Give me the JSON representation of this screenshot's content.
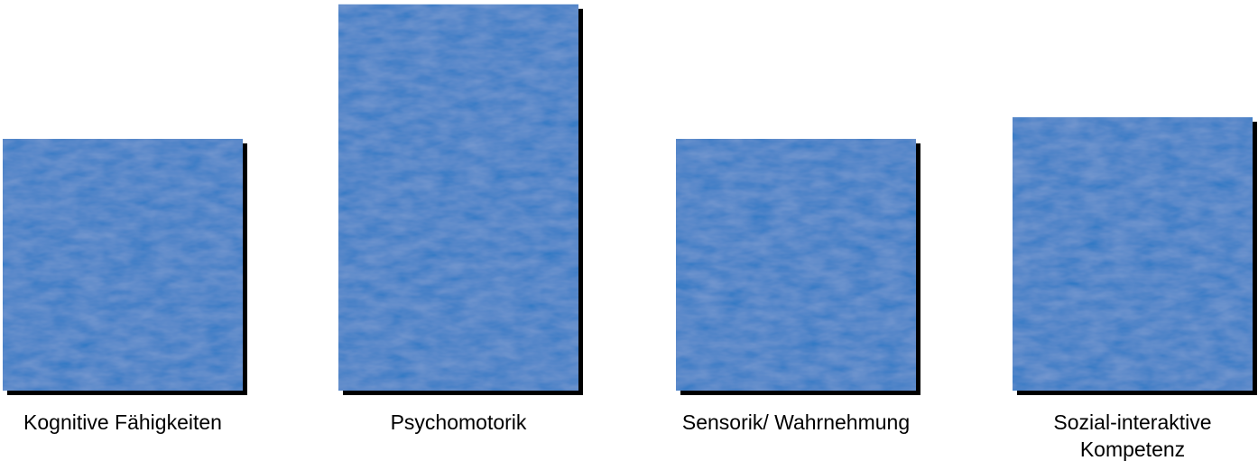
{
  "chart_data": {
    "type": "bar",
    "categories": [
      [
        "Kognitive Fähigkeiten"
      ],
      [
        "Psychomotorik"
      ],
      [
        "Sensorik/ Wahrnehmung"
      ],
      [
        "Sozial-interaktive",
        "Kompetenz"
      ]
    ],
    "values": [
      29,
      44.5,
      29,
      31.5
    ],
    "ylim": [
      0,
      45
    ],
    "grid": false,
    "legend": "none",
    "bar_color": "#2a77c4",
    "shadow_color": "#000000"
  }
}
